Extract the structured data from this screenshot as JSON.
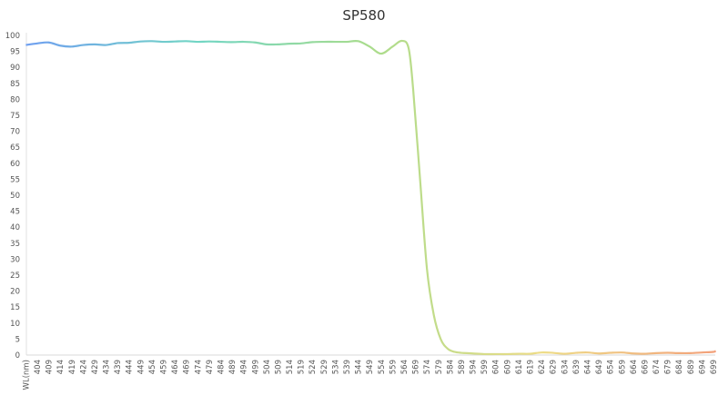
{
  "chart_data": {
    "type": "line",
    "title": "SP580",
    "xlabel": "WL(nm)",
    "ylabel": "",
    "ylim": [
      0,
      100
    ],
    "yticks": [
      0,
      5,
      10,
      15,
      20,
      25,
      30,
      35,
      40,
      45,
      50,
      55,
      60,
      65,
      70,
      75,
      80,
      85,
      90,
      95,
      100
    ],
    "xticks": [
      404,
      409,
      414,
      419,
      424,
      429,
      434,
      439,
      444,
      449,
      454,
      459,
      464,
      469,
      474,
      479,
      484,
      489,
      494,
      499,
      504,
      509,
      514,
      519,
      524,
      529,
      534,
      539,
      544,
      549,
      554,
      559,
      564,
      569,
      574,
      579,
      584,
      589,
      594,
      599,
      604,
      609,
      614,
      619,
      624,
      629,
      634,
      639,
      644,
      649,
      654,
      659,
      664,
      669,
      674,
      679,
      684,
      689,
      694,
      699
    ],
    "grid": false,
    "legend": "none",
    "line_gradient": [
      "#6f9ff0",
      "#72d6c4",
      "#a9dc8c",
      "#eedc86",
      "#f2a07a"
    ],
    "x": [
      399,
      404,
      409,
      414,
      419,
      424,
      429,
      434,
      439,
      444,
      449,
      454,
      459,
      464,
      469,
      474,
      479,
      484,
      489,
      494,
      499,
      504,
      509,
      514,
      519,
      524,
      529,
      534,
      539,
      544,
      549,
      554,
      559,
      563,
      566,
      568,
      571,
      574,
      577,
      580,
      583,
      586,
      589,
      594,
      599,
      604,
      609,
      614,
      619,
      624,
      629,
      634,
      639,
      644,
      649,
      654,
      659,
      664,
      669,
      674,
      679,
      684,
      689,
      694,
      699,
      700
    ],
    "y": [
      97,
      97.5,
      97.8,
      96.8,
      96.5,
      97,
      97.2,
      97,
      97.6,
      97.7,
      98.1,
      98.2,
      98,
      98.1,
      98.2,
      98,
      98.1,
      98,
      97.9,
      98,
      97.8,
      97.2,
      97.2,
      97.4,
      97.5,
      97.9,
      98,
      98,
      98,
      98.2,
      96.5,
      94.3,
      96.5,
      98.3,
      96,
      83,
      55,
      27,
      12.5,
      5,
      2,
      1,
      0.7,
      0.5,
      0.3,
      0.3,
      0.3,
      0.4,
      0.4,
      0.8,
      0.7,
      0.4,
      0.7,
      0.8,
      0.5,
      0.7,
      0.8,
      0.5,
      0.4,
      0.6,
      0.7,
      0.6,
      0.6,
      0.8,
      1,
      1.3
    ]
  }
}
